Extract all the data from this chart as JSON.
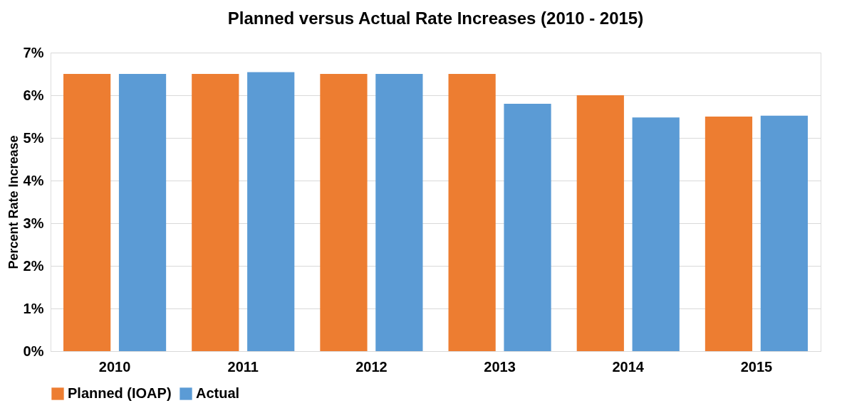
{
  "chart_data": {
    "type": "bar",
    "title": "Planned versus Actual Rate Increases (2010 - 2015)",
    "ylabel": "Percent Rate Increase",
    "categories": [
      "2010",
      "2011",
      "2012",
      "2013",
      "2014",
      "2015"
    ],
    "series": [
      {
        "name": "Planned (IOAP)",
        "color": "#ed7d31",
        "values": [
          6.5,
          6.5,
          6.5,
          6.5,
          6.0,
          5.5
        ]
      },
      {
        "name": "Actual",
        "color": "#5b9bd5",
        "values": [
          6.5,
          6.54,
          6.5,
          5.8,
          5.48,
          5.52
        ]
      }
    ],
    "ylim": [
      0,
      7
    ],
    "yticks": [
      {
        "value": 0,
        "label": "0%"
      },
      {
        "value": 1,
        "label": "1%"
      },
      {
        "value": 2,
        "label": "2%"
      },
      {
        "value": 3,
        "label": "3%"
      },
      {
        "value": 4,
        "label": "4%"
      },
      {
        "value": 5,
        "label": "5%"
      },
      {
        "value": 6,
        "label": "6%"
      },
      {
        "value": 7,
        "label": "7%"
      }
    ],
    "grid": "y",
    "legend": "bottom"
  }
}
